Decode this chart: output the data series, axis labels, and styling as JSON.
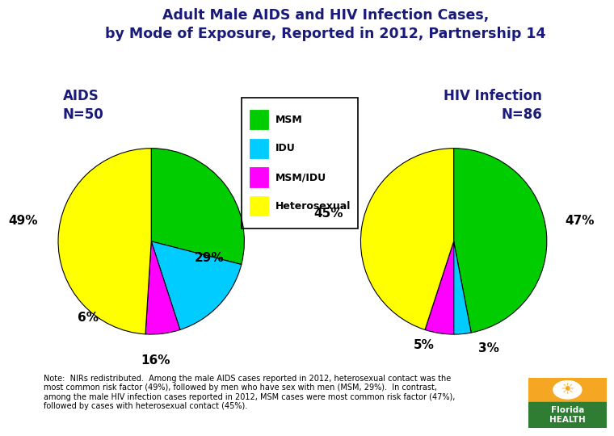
{
  "title_line1": "Adult Male AIDS and HIV Infection Cases,",
  "title_line2": "by Mode of Exposure, Reported in 2012, Partnership 14",
  "title_color": "#1a1a7a",
  "aids_title": "AIDS\nN=50",
  "hiv_title": "HIV Infection\nN=86",
  "categories": [
    "MSM",
    "IDU",
    "MSM/IDU",
    "Heterosexual"
  ],
  "colors": [
    "#00cc00",
    "#00ccff",
    "#ff00ff",
    "#ffff00"
  ],
  "aids_values": [
    29,
    16,
    6,
    49
  ],
  "hiv_values": [
    47,
    3,
    5,
    45
  ],
  "note_text": "Note:  NIRs redistributed.  Among the male AIDS cases reported in 2012, heterosexual contact was the\nmost common risk factor (49%), followed by men who have sex with men (MSM, 29%).  In contrast,\namong the male HIV infection cases reported in 2012, MSM cases were most common risk factor (47%),\nfollowed by cases with heterosexual contact (45%).",
  "background_color": "#ffffff",
  "aids_label_positions": [
    [
      0.62,
      -0.18,
      "29%"
    ],
    [
      0.05,
      -1.28,
      "16%"
    ],
    [
      -0.68,
      -0.82,
      "6%"
    ],
    [
      -1.38,
      0.22,
      "49%"
    ]
  ],
  "hiv_label_positions": [
    [
      1.35,
      0.22,
      "47%"
    ],
    [
      0.38,
      -1.15,
      "3%"
    ],
    [
      -0.32,
      -1.12,
      "5%"
    ],
    [
      -1.35,
      0.3,
      "45%"
    ]
  ]
}
